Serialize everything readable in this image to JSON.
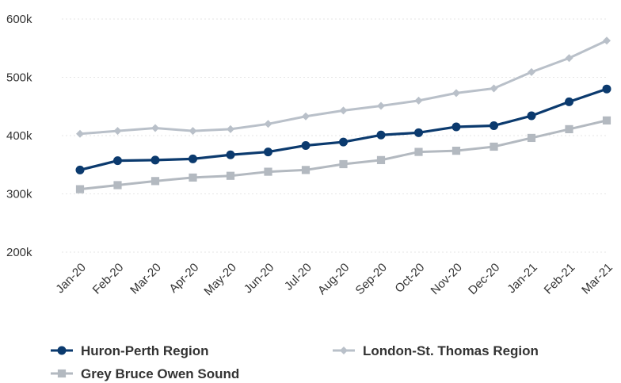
{
  "chart_data": {
    "type": "line",
    "title": "",
    "xlabel": "",
    "ylabel": "",
    "categories": [
      "Jan-20",
      "Feb-20",
      "Mar-20",
      "Apr-20",
      "May-20",
      "Jun-20",
      "Jul-20",
      "Aug-20",
      "Sep-20",
      "Oct-20",
      "Nov-20",
      "Dec-20",
      "Jan-21",
      "Feb-21",
      "Mar-21"
    ],
    "ylim": [
      200000,
      600000
    ],
    "yticks": [
      {
        "value": 200000,
        "label": "200k"
      },
      {
        "value": 300000,
        "label": "300k"
      },
      {
        "value": 400000,
        "label": "400k"
      },
      {
        "value": 500000,
        "label": "500k"
      },
      {
        "value": 600000,
        "label": "600k"
      }
    ],
    "grid": true,
    "legend_position": "bottom",
    "series": [
      {
        "name": "Huron-Perth Region",
        "color": "#0b3a6e",
        "marker": "circle",
        "values": [
          341000,
          357000,
          358000,
          360000,
          367000,
          372000,
          383000,
          389000,
          401000,
          405000,
          415000,
          417000,
          434000,
          458000,
          480000
        ]
      },
      {
        "name": "London-St. Thomas Region",
        "color": "#b9c0c9",
        "marker": "diamond",
        "values": [
          403000,
          408000,
          413000,
          408000,
          411000,
          420000,
          433000,
          443000,
          451000,
          460000,
          473000,
          481000,
          509000,
          533000,
          563000
        ]
      },
      {
        "name": "Grey Bruce Owen Sound",
        "color": "#b3b9c0",
        "marker": "square",
        "values": [
          308000,
          315000,
          322000,
          328000,
          331000,
          338000,
          341000,
          351000,
          358000,
          372000,
          374000,
          381000,
          396000,
          411000,
          426000
        ]
      }
    ]
  }
}
